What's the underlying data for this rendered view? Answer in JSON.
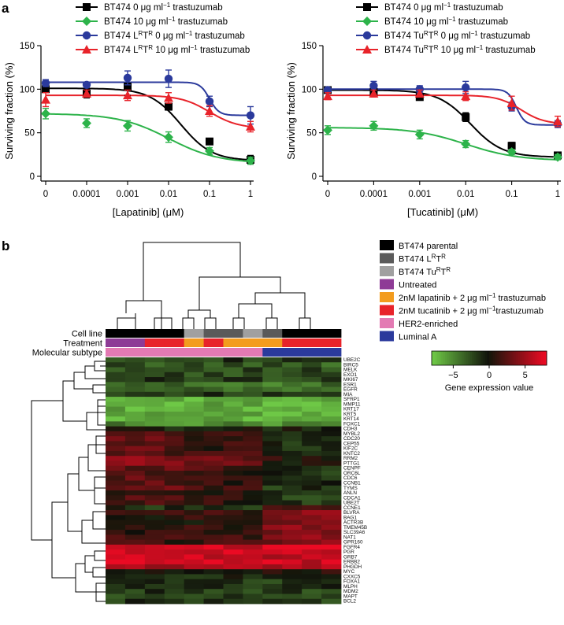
{
  "figure": {
    "panel_a_label": "a",
    "panel_b_label": "b"
  },
  "chart_data": [
    {
      "type": "line",
      "id": "lapatinib",
      "title": "",
      "xlabel": "[Lapatinib] (μM)",
      "ylabel": "Surviving fraction (%)",
      "xticks": [
        "0",
        "0.0001",
        "0.001",
        "0.01",
        "0.1",
        "1"
      ],
      "yticks": [
        "0",
        "50",
        "100",
        "150"
      ],
      "ylim": [
        0,
        150
      ],
      "series": [
        {
          "name": "BT474 0 μg ml⁻¹ trastuzumab",
          "legend_main": "BT474 0 μg ml",
          "legend_sup": "−1",
          "legend_tail": " trastuzumab",
          "color": "#000000",
          "marker": "square",
          "values": [
            100,
            95,
            103,
            80,
            40,
            19
          ],
          "errors": [
            3,
            5,
            10,
            4,
            3,
            5
          ],
          "fit": {
            "top": 101,
            "bottom": 18,
            "mid": 3.3,
            "slope": 1.2
          }
        },
        {
          "name": "BT474 10 μg ml⁻¹ trastuzumab",
          "legend_main": "BT474 10 μg ml",
          "legend_sup": "−1",
          "legend_tail": " trastuzumab",
          "color": "#2db34a",
          "marker": "diamond",
          "values": [
            72,
            61,
            58,
            45,
            29,
            18
          ],
          "errors": [
            6,
            5,
            6,
            6,
            4,
            4
          ],
          "fit": {
            "top": 72,
            "bottom": 15,
            "mid": 3.0,
            "slope": 0.75
          }
        },
        {
          "name": "BT474 LRTR 0 μg ml⁻¹ trastuzumab",
          "legend_main": "BT474 L",
          "legend_parts": [
            "R",
            "T",
            "R"
          ],
          "legend_sup": "−1",
          "legend_tail": " trastuzumab",
          "color": "#2b3a9c",
          "marker": "circle",
          "values": [
            107,
            105,
            113,
            112,
            86,
            70
          ],
          "errors": [
            4,
            3,
            8,
            10,
            6,
            10
          ],
          "fit": {
            "top": 108,
            "bottom": 70,
            "mid": 4.0,
            "slope": 4.0
          }
        },
        {
          "name": "BT474 LRTR 10 μg ml⁻¹ trastuzumab",
          "legend_main": "BT474 L",
          "legend_parts": [
            "R",
            "T",
            "R"
          ],
          "legend_sup": "−1",
          "legend_tail": " trastuzumab",
          "color": "#e8232a",
          "marker": "triangle",
          "values": [
            88,
            95,
            93,
            90,
            75,
            57
          ],
          "errors": [
            8,
            4,
            6,
            6,
            6,
            6
          ],
          "fit": {
            "top": 93,
            "bottom": 55,
            "mid": 4.0,
            "slope": 1.3
          }
        }
      ]
    },
    {
      "type": "line",
      "id": "tucatinib",
      "title": "",
      "xlabel": "[Tucatinib] (μM)",
      "ylabel": "Surviving fraction (%)",
      "xticks": [
        "0",
        "0.0001",
        "0.001",
        "0.01",
        "0.1",
        "1"
      ],
      "yticks": [
        "0",
        "50",
        "100",
        "150"
      ],
      "ylim": [
        0,
        150
      ],
      "series": [
        {
          "name": "BT474 0 μg ml⁻¹ trastuzumab",
          "legend_main": "BT474 0 μg ml",
          "legend_sup": "−1",
          "legend_tail": " trastuzumab",
          "color": "#000000",
          "marker": "square",
          "values": [
            99,
            97,
            91,
            68,
            35,
            24
          ],
          "errors": [
            3,
            3,
            3,
            5,
            4,
            3
          ],
          "fit": {
            "top": 99,
            "bottom": 22,
            "mid": 3.1,
            "slope": 1.3
          }
        },
        {
          "name": "BT474 10 μg ml⁻¹ trastuzumab",
          "legend_main": "BT474 10 μg ml",
          "legend_sup": "−1",
          "legend_tail": " trastuzumab",
          "color": "#2db34a",
          "marker": "diamond",
          "values": [
            53,
            58,
            48,
            37,
            28,
            22
          ],
          "errors": [
            5,
            5,
            5,
            4,
            3,
            3
          ],
          "fit": {
            "top": 56,
            "bottom": 18,
            "mid": 3.0,
            "slope": 0.8
          }
        },
        {
          "name": "BT474 TuRTR 0 μg ml⁻¹ trastuzumab",
          "legend_main": "BT474 Tu",
          "legend_parts": [
            "R",
            "T",
            "R"
          ],
          "legend_sup": "−1",
          "legend_tail": " trastuzumab",
          "color": "#2b3a9c",
          "marker": "circle",
          "values": [
            99,
            104,
            100,
            102,
            80,
            60
          ],
          "errors": [
            3,
            5,
            4,
            7,
            5,
            4
          ],
          "fit": {
            "top": 100,
            "bottom": 59,
            "mid": 4.1,
            "slope": 5.0
          }
        },
        {
          "name": "BT474 TuRTR 10 μg ml⁻¹ trastuzumab",
          "legend_main": "BT474 Tu",
          "legend_parts": [
            "R",
            "T",
            "R"
          ],
          "legend_sup": "−1",
          "legend_tail": " trastuzumab",
          "color": "#e8232a",
          "marker": "triangle",
          "values": [
            92,
            95,
            95,
            92,
            84,
            63
          ],
          "errors": [
            4,
            4,
            4,
            5,
            8,
            6
          ],
          "fit": {
            "top": 93,
            "bottom": 60,
            "mid": 4.2,
            "slope": 1.8
          }
        }
      ]
    },
    {
      "type": "heatmap",
      "id": "expression",
      "title": "",
      "annotation_labels": [
        "Cell line",
        "Treatment",
        "Molecular subtype"
      ],
      "genes": [
        "UBE2C",
        "BIRC5",
        "MELK",
        "EXO1",
        "MKI67",
        "ESR1",
        "EGFR",
        "MIA",
        "SFRP1",
        "MMP11",
        "KRT17",
        "KRT5",
        "KRT14",
        "FOXC1",
        "CDH3",
        "MYBL2",
        "CDC20",
        "CEP55",
        "KIF2C",
        "KNTC2",
        "RRM2",
        "PTTG1",
        "CENPF",
        "ORC6L",
        "CDC6",
        "CCNB1",
        "TYMS",
        "ANLN",
        "CDCA1",
        "UBE2T",
        "CCNE1",
        "BLVRA",
        "BAG1",
        "ACTR3B",
        "TMEM45B",
        "SLC39A6",
        "NAT1",
        "GPR160",
        "FGFR4",
        "PGR",
        "GRB7",
        "ERBB2",
        "PHGDH",
        "MYC",
        "CXXC5",
        "FOXA1",
        "MLPH",
        "MDM2",
        "MAPT",
        "BCL2"
      ],
      "gene_profiles": [
        -1.5,
        -2.5,
        -2,
        -2,
        -1.5,
        -3.5,
        -3.5,
        -1.5,
        -6,
        -6,
        -6,
        -6,
        -6,
        -4.5,
        -0.5,
        1,
        1,
        1,
        1,
        1,
        2.5,
        2.5,
        1.5,
        1,
        1,
        1,
        1,
        0.5,
        0.5,
        0.5,
        -1,
        1,
        0.5,
        0.5,
        1,
        1,
        1,
        1,
        6,
        6,
        6,
        6,
        5,
        0.5,
        -1,
        -1.5,
        -1,
        -1.5,
        -2,
        -1.5
      ],
      "column_count": 12,
      "cell_line_colors": [
        "#000000",
        "#000000",
        "#000000",
        "#000000",
        "#a0a0a0",
        "#5a5a5a",
        "#5a5a5a",
        "#a0a0a0",
        "#5a5a5a",
        "#000000",
        "#000000",
        "#000000"
      ],
      "treatment_colors": [
        "#8e3b96",
        "#8e3b96",
        "#e8232a",
        "#e8232a",
        "#f39c1e",
        "#e8232a",
        "#f39c1e",
        "#f39c1e",
        "#f39c1e",
        "#e8232a",
        "#e8232a",
        "#e8232a"
      ],
      "subtype_colors": [
        "#e37ab3",
        "#e37ab3",
        "#e37ab3",
        "#e37ab3",
        "#e37ab3",
        "#e37ab3",
        "#e37ab3",
        "#e37ab3",
        "#2b3a9c",
        "#2b3a9c",
        "#2b3a9c",
        "#2b3a9c"
      ],
      "legend": [
        {
          "label": "BT474 parental",
          "color": "#000000"
        },
        {
          "label_main": "BT474 L",
          "parts": [
            "R",
            "T",
            "R"
          ],
          "color": "#5a5a5a"
        },
        {
          "label_main": "BT474 Tu",
          "parts": [
            "R",
            "T",
            "R"
          ],
          "color": "#a0a0a0"
        },
        {
          "label": "Untreated",
          "color": "#8e3b96"
        },
        {
          "label_main": "2nM lapatinib + 2 μg ml",
          "sup": "−1",
          "tail": " trastuzumab",
          "color": "#f39c1e"
        },
        {
          "label_main": "2nM tucatinib + 2 μg ml",
          "sup": "−1",
          "tail": "trastuzumab",
          "color": "#e8232a"
        },
        {
          "label": "HER2-enriched",
          "color": "#e37ab3"
        },
        {
          "label": "Luminal A",
          "color": "#2b3a9c"
        }
      ],
      "colorbar": {
        "ticks": [
          "−5",
          "0",
          "5"
        ],
        "label": "Gene expression value",
        "range": [
          -8,
          8
        ]
      }
    }
  ]
}
